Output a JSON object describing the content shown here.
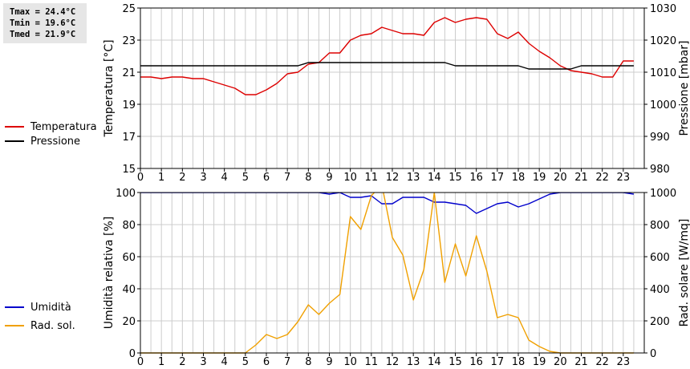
{
  "stats": {
    "tmax": "Tmax = 24.4°C",
    "tmin": "Tmin = 19.6°C",
    "tmed": "Tmed = 21.9°C"
  },
  "colors": {
    "temperature": "#dd0000",
    "pressure": "#000000",
    "humidity": "#0000cc",
    "radiation": "#f0a000",
    "grid": "#cccccc"
  },
  "chart_data": [
    {
      "type": "line",
      "x": [
        0,
        0.5,
        1,
        1.5,
        2,
        2.5,
        3,
        3.5,
        4,
        4.5,
        5,
        5.5,
        6,
        6.5,
        7,
        7.5,
        8,
        8.5,
        9,
        9.5,
        10,
        10.5,
        11,
        11.5,
        12,
        12.5,
        13,
        13.5,
        14,
        14.5,
        15,
        15.5,
        16,
        16.5,
        17,
        17.5,
        18,
        18.5,
        19,
        19.5,
        20,
        20.5,
        21,
        21.5,
        22,
        22.5,
        23,
        23.5
      ],
      "xlim": [
        0,
        24
      ],
      "xticks": [
        "0",
        "1",
        "2",
        "3",
        "4",
        "5",
        "6",
        "7",
        "8",
        "9",
        "10",
        "11",
        "12",
        "13",
        "14",
        "15",
        "16",
        "17",
        "18",
        "19",
        "20",
        "21",
        "22",
        "23"
      ],
      "ylabel": "Temperatura [°C]",
      "ylim": [
        15,
        25
      ],
      "yticks": [
        "15",
        "17",
        "19",
        "21",
        "23",
        "25"
      ],
      "y2label": "Pressione [mbar]",
      "y2lim": [
        980,
        1030
      ],
      "y2ticks": [
        "980",
        "990",
        "1000",
        "1010",
        "1020",
        "1030"
      ],
      "grid": true,
      "legend_position": "left",
      "series": [
        {
          "name": "Temperatura",
          "axis": "left",
          "values": [
            20.7,
            20.7,
            20.6,
            20.7,
            20.7,
            20.6,
            20.6,
            20.4,
            20.2,
            20.0,
            19.6,
            19.6,
            19.9,
            20.3,
            20.9,
            21.0,
            21.5,
            21.6,
            22.2,
            22.2,
            23.0,
            23.3,
            23.4,
            23.8,
            23.6,
            23.4,
            23.4,
            23.3,
            24.1,
            24.4,
            24.1,
            24.3,
            24.4,
            24.3,
            23.4,
            23.1,
            23.5,
            22.8,
            22.3,
            21.9,
            21.4,
            21.1,
            21.0,
            20.9,
            20.7,
            20.7,
            21.7,
            21.7
          ]
        },
        {
          "name": "Pressione",
          "axis": "right",
          "values": [
            1012,
            1012,
            1012,
            1012,
            1012,
            1012,
            1012,
            1012,
            1012,
            1012,
            1012,
            1012,
            1012,
            1012,
            1012,
            1012,
            1013,
            1013,
            1013,
            1013,
            1013,
            1013,
            1013,
            1013,
            1013,
            1013,
            1013,
            1013,
            1013,
            1013,
            1012,
            1012,
            1012,
            1012,
            1012,
            1012,
            1012,
            1011,
            1011,
            1011,
            1011,
            1011,
            1012,
            1012,
            1012,
            1012,
            1012,
            1012
          ]
        }
      ]
    },
    {
      "type": "line",
      "x": [
        0,
        0.5,
        1,
        1.5,
        2,
        2.5,
        3,
        3.5,
        4,
        4.5,
        5,
        5.5,
        6,
        6.5,
        7,
        7.5,
        8,
        8.5,
        9,
        9.5,
        10,
        10.5,
        11,
        11.5,
        12,
        12.5,
        13,
        13.5,
        14,
        14.5,
        15,
        15.5,
        16,
        16.5,
        17,
        17.5,
        18,
        18.5,
        19,
        19.5,
        20,
        20.5,
        21,
        21.5,
        22,
        22.5,
        23,
        23.5
      ],
      "xlim": [
        0,
        24
      ],
      "xticks": [
        "0",
        "1",
        "2",
        "3",
        "4",
        "5",
        "6",
        "7",
        "8",
        "9",
        "10",
        "11",
        "12",
        "13",
        "14",
        "15",
        "16",
        "17",
        "18",
        "19",
        "20",
        "21",
        "22",
        "23"
      ],
      "ylabel": "Umidità relativa [%]",
      "ylim": [
        0,
        100
      ],
      "yticks": [
        "0",
        "20",
        "40",
        "60",
        "80",
        "100"
      ],
      "y2label": "Rad. solare [W/mq]",
      "y2lim": [
        0,
        1000
      ],
      "y2ticks": [
        "0",
        "200",
        "400",
        "600",
        "800",
        "1000"
      ],
      "grid": true,
      "legend_position": "left",
      "series": [
        {
          "name": "Umidità",
          "axis": "left",
          "values": [
            100,
            100,
            100,
            100,
            100,
            100,
            100,
            100,
            100,
            100,
            100,
            100,
            100,
            100,
            100,
            100,
            100,
            100,
            99,
            100,
            97,
            97,
            98,
            93,
            93,
            97,
            97,
            97,
            94,
            94,
            93,
            92,
            87,
            90,
            93,
            94,
            91,
            93,
            96,
            99,
            100,
            100,
            100,
            100,
            100,
            100,
            100,
            99
          ]
        },
        {
          "name": "Rad. sol.",
          "axis": "right",
          "values": [
            0,
            0,
            0,
            0,
            0,
            0,
            0,
            0,
            0,
            0,
            0,
            50,
            115,
            90,
            115,
            195,
            300,
            240,
            310,
            365,
            850,
            770,
            980,
            1050,
            720,
            610,
            330,
            520,
            1000,
            440,
            680,
            480,
            730,
            510,
            220,
            240,
            220,
            80,
            40,
            10,
            0,
            0,
            0,
            0,
            0,
            0,
            0,
            0
          ]
        }
      ]
    }
  ]
}
